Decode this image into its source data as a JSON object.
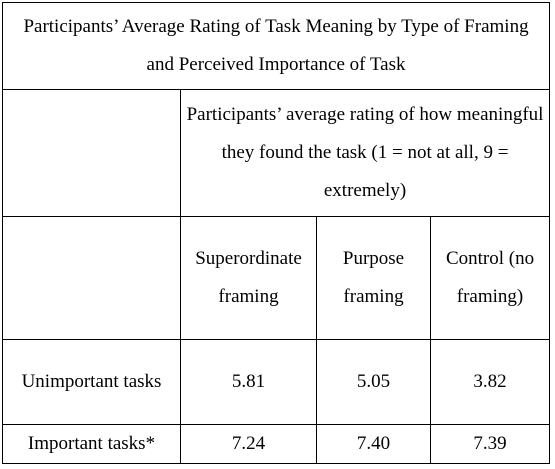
{
  "table": {
    "title": "Participants’ Average Rating of Task Meaning by Type of Framing and Perceived Importance of Task",
    "measure_header": "Participants’ average rating of how meaningful they found the task (1 = not at all, 9 = extremely)",
    "columns": [
      "Superordinate framing",
      "Purpose framing",
      "Control (no framing)"
    ],
    "rows": [
      {
        "label": "Unimportant tasks",
        "values": [
          "5.81",
          "5.05",
          "3.82"
        ]
      },
      {
        "label": "Important tasks*",
        "values": [
          "7.24",
          "7.40",
          "7.39"
        ]
      }
    ]
  }
}
